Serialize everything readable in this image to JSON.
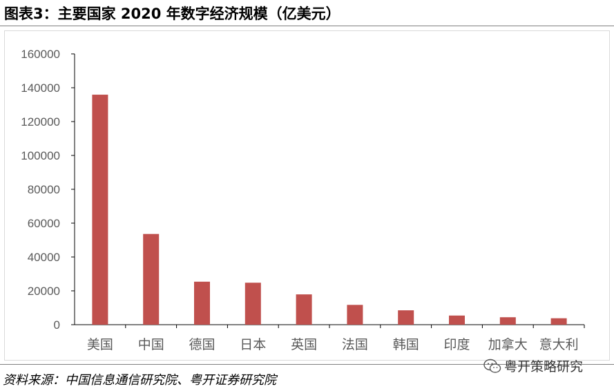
{
  "title": "图表3：主要国家 2020 年数字经济规模（亿美元）",
  "source": "资料来源：中国信息通信研究院、粤开证券研究院",
  "watermark": "粤开策略研究",
  "colors": {
    "bar": "#c0504d",
    "axis": "#000000",
    "frame": "#d9d9d9"
  },
  "chart_data": {
    "type": "bar",
    "title": "",
    "xlabel": "",
    "ylabel": "",
    "categories": [
      "美国",
      "中国",
      "德国",
      "日本",
      "英国",
      "法国",
      "韩国",
      "印度",
      "加拿大",
      "意大利"
    ],
    "values": [
      135900,
      53600,
      25400,
      24800,
      17900,
      11700,
      8500,
      5400,
      4400,
      3800
    ],
    "ylim": [
      0,
      160000
    ],
    "yticks": [
      "0",
      "20000",
      "40000",
      "60000",
      "80000",
      "100000",
      "120000",
      "140000",
      "160000"
    ],
    "grid": false,
    "legend": "none"
  }
}
